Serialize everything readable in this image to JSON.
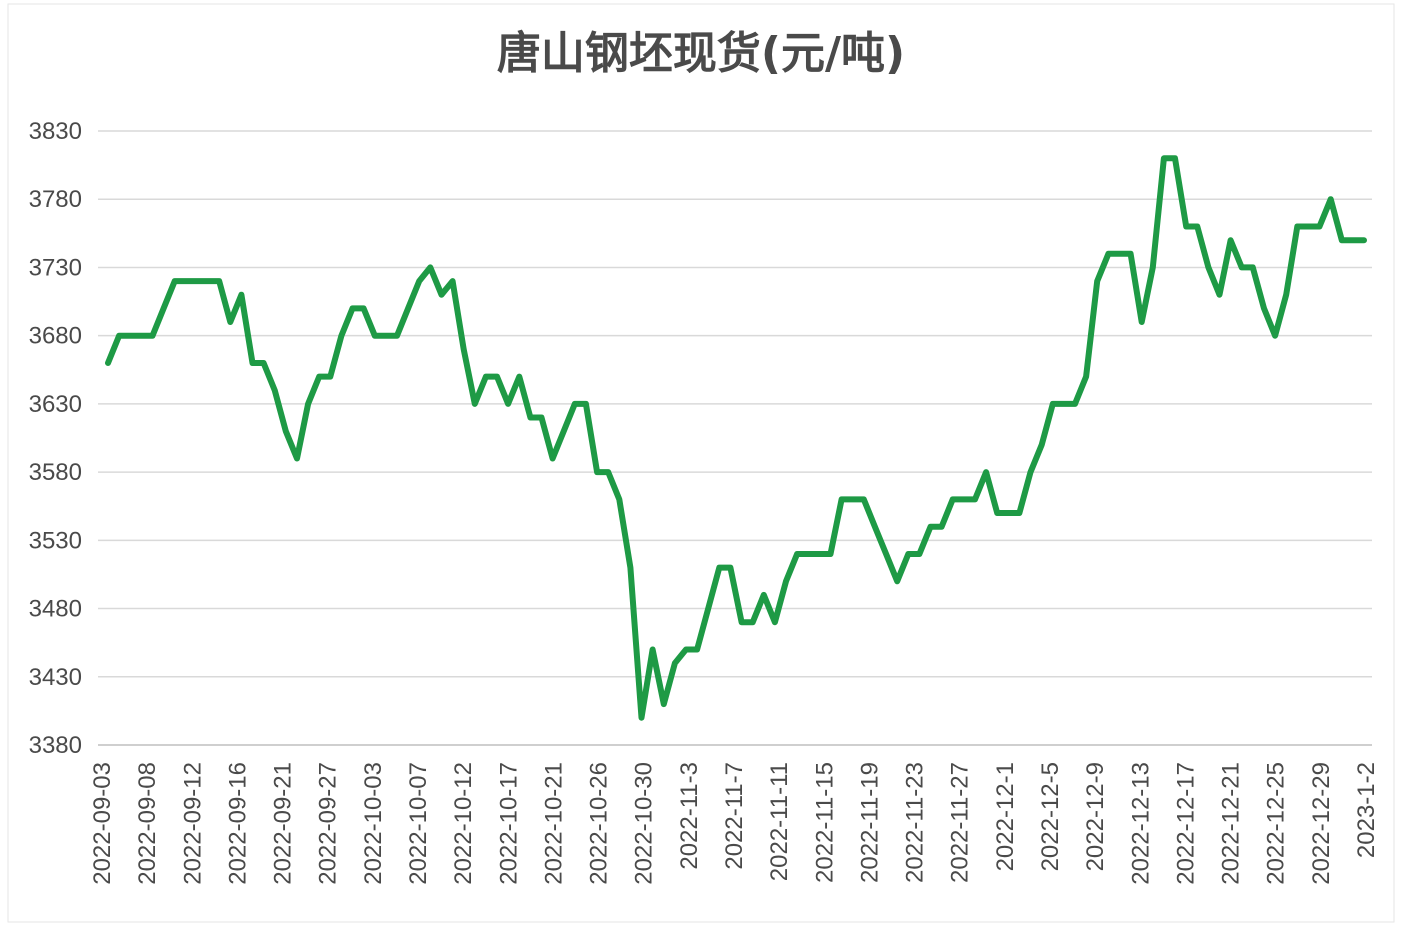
{
  "chart_data": {
    "type": "line",
    "title": "唐山钢坯现货(元/吨)",
    "xlabel": "",
    "ylabel": "",
    "ylim": [
      3380,
      3830
    ],
    "yticks": [
      3380,
      3430,
      3480,
      3530,
      3580,
      3630,
      3680,
      3730,
      3780,
      3830
    ],
    "grid": true,
    "legend": "none",
    "xtick_labels": [
      "2022-09-03",
      "2022-09-08",
      "2022-09-12",
      "2022-09-16",
      "2022-09-21",
      "2022-09-27",
      "2022-10-03",
      "2022-10-07",
      "2022-10-12",
      "2022-10-17",
      "2022-10-21",
      "2022-10-26",
      "2022-10-30",
      "2022-11-3",
      "2022-11-7",
      "2022-11-11",
      "2022-11-15",
      "2022-11-19",
      "2022-11-23",
      "2022-11-27",
      "2022-12-1",
      "2022-12-5",
      "2022-12-9",
      "2022-12-13",
      "2022-12-17",
      "2022-12-21",
      "2022-12-25",
      "2022-12-29",
      "2023-1-2"
    ],
    "series": [
      {
        "color": "#1e9a45",
        "values": [
          3660,
          3680,
          3680,
          3680,
          3680,
          3700,
          3720,
          3720,
          3720,
          3720,
          3720,
          3690,
          3710,
          3660,
          3660,
          3640,
          3610,
          3590,
          3630,
          3650,
          3650,
          3680,
          3700,
          3700,
          3680,
          3680,
          3680,
          3700,
          3720,
          3730,
          3710,
          3720,
          3670,
          3630,
          3650,
          3650,
          3630,
          3650,
          3620,
          3620,
          3590,
          3610,
          3630,
          3630,
          3580,
          3580,
          3560,
          3510,
          3400,
          3450,
          3410,
          3440,
          3450,
          3450,
          3480,
          3510,
          3510,
          3470,
          3470,
          3490,
          3470,
          3500,
          3520,
          3520,
          3520,
          3520,
          3560,
          3560,
          3560,
          3540,
          3520,
          3500,
          3520,
          3520,
          3540,
          3540,
          3560,
          3560,
          3560,
          3580,
          3550,
          3550,
          3550,
          3580,
          3600,
          3630,
          3630,
          3630,
          3650,
          3720,
          3740,
          3740,
          3740,
          3690,
          3730,
          3810,
          3810,
          3760,
          3760,
          3730,
          3710,
          3750,
          3730,
          3730,
          3700,
          3680,
          3710,
          3760,
          3760,
          3760,
          3780,
          3750,
          3750,
          3750
        ]
      }
    ]
  }
}
